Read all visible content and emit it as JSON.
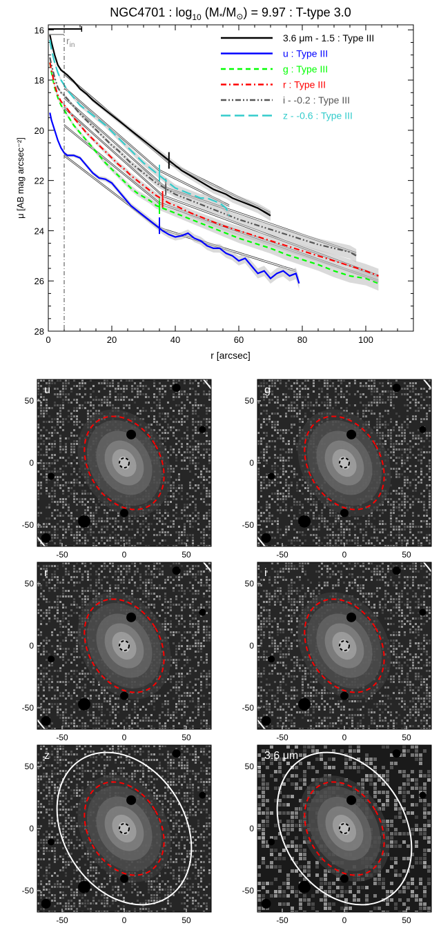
{
  "chart_data": [
    {
      "type": "line",
      "title": {
        "main": "NGC4701 : log",
        "sub1": "10",
        "mid": " (M",
        "sub2": "*",
        "mid2": "/M",
        "sub3": "⊙",
        "tail": ") = 9.97 : T-type 3.0"
      },
      "xlabel": "r [arcsec]",
      "ylabel": "μ [AB mag arcsec⁻²]",
      "xlim": [
        0,
        115
      ],
      "ylim": [
        28,
        15.8
      ],
      "y_inverted": true,
      "xticks": [
        0,
        20,
        40,
        60,
        80,
        100
      ],
      "yticks": [
        16,
        18,
        20,
        22,
        24,
        26,
        28
      ],
      "r_in_label": "r_in",
      "r_in_label_parts": {
        "base": "r",
        "sub": "in"
      },
      "r_in_value": 5,
      "legend_position": "top-right",
      "series": [
        {
          "name": "3.6 μm - 1.5 : Type III",
          "color": "#000000",
          "dash": "solid",
          "x": [
            0.5,
            1,
            2,
            3,
            4,
            5,
            6,
            8,
            10,
            12,
            14,
            16,
            18,
            20,
            22,
            24,
            26,
            28,
            30,
            32,
            34,
            36,
            38,
            40,
            42,
            44,
            46,
            48,
            50,
            52,
            54,
            56,
            58,
            60,
            62,
            64,
            66,
            68,
            70
          ],
          "y": [
            16.2,
            16.5,
            17.0,
            17.4,
            17.6,
            17.7,
            17.8,
            18.05,
            18.35,
            18.55,
            18.8,
            19.0,
            19.2,
            19.4,
            19.6,
            19.8,
            20.0,
            20.2,
            20.4,
            20.6,
            20.8,
            21.0,
            21.2,
            21.4,
            21.6,
            21.75,
            21.9,
            22.05,
            22.2,
            22.35,
            22.45,
            22.55,
            22.7,
            22.8,
            22.9,
            23.0,
            23.1,
            23.25,
            23.4
          ],
          "fit_segments": [
            [
              [
                5,
                17.75
              ],
              [
                38,
                21.3
              ]
            ],
            [
              [
                38,
                21.3
              ],
              [
                70,
                23.3
              ]
            ]
          ],
          "break_r": 38
        },
        {
          "name": "u : Type III",
          "color": "#0000ff",
          "dash": "solid",
          "x": [
            0.5,
            1,
            2,
            3,
            4,
            5,
            6,
            8,
            10,
            12,
            14,
            16,
            18,
            20,
            22,
            24,
            26,
            28,
            30,
            32,
            34,
            36,
            38,
            40,
            42,
            44,
            46,
            48,
            50,
            52,
            54,
            56,
            58,
            60,
            62,
            64,
            66,
            68,
            70,
            72,
            74,
            76,
            78,
            79
          ],
          "y": [
            19.3,
            19.6,
            20.0,
            20.4,
            20.7,
            20.9,
            21.0,
            21.0,
            21.1,
            21.4,
            21.7,
            21.9,
            21.95,
            22.1,
            22.4,
            22.7,
            23.0,
            23.2,
            23.4,
            23.6,
            23.8,
            24.0,
            24.15,
            24.25,
            24.2,
            24.1,
            24.3,
            24.4,
            24.6,
            24.7,
            24.7,
            24.9,
            25.0,
            25.2,
            25.1,
            25.4,
            25.7,
            25.6,
            25.9,
            25.7,
            25.6,
            25.8,
            25.7,
            26.1
          ],
          "fit_segments": [
            [
              [
                5,
                21.0
              ],
              [
                35,
                23.9
              ]
            ],
            [
              [
                35,
                23.9
              ],
              [
                78,
                25.6
              ]
            ]
          ],
          "break_r": 35
        },
        {
          "name": "g : Type III",
          "color": "#00ff00",
          "dash": "dashed",
          "x": [
            0.5,
            1,
            2,
            3,
            4,
            5,
            6,
            8,
            10,
            12,
            14,
            16,
            18,
            20,
            22,
            24,
            26,
            28,
            30,
            32,
            34,
            36,
            38,
            40,
            45,
            50,
            55,
            60,
            65,
            70,
            75,
            80,
            85,
            90,
            95,
            100,
            104
          ],
          "y": [
            17.3,
            17.7,
            18.3,
            18.7,
            19.0,
            19.2,
            19.4,
            19.8,
            20.1,
            20.4,
            20.7,
            21.0,
            21.3,
            21.55,
            21.8,
            22.05,
            22.3,
            22.5,
            22.65,
            22.8,
            23.0,
            23.1,
            23.2,
            23.3,
            23.55,
            23.8,
            24.05,
            24.3,
            24.5,
            24.7,
            24.95,
            25.15,
            25.35,
            25.6,
            25.8,
            25.9,
            26.1
          ],
          "fit_segments": [
            [
              [
                5,
                19.8
              ],
              [
                35,
                22.9
              ]
            ],
            [
              [
                35,
                22.9
              ],
              [
                104,
                26.0
              ]
            ]
          ],
          "break_r": 35
        },
        {
          "name": "r : Type III",
          "color": "#ff0000",
          "dash": "dashdot",
          "x": [
            0.5,
            1,
            2,
            3,
            4,
            5,
            6,
            8,
            10,
            12,
            14,
            16,
            18,
            20,
            22,
            24,
            26,
            28,
            30,
            32,
            34,
            36,
            38,
            40,
            45,
            50,
            55,
            60,
            65,
            70,
            75,
            80,
            85,
            90,
            95,
            100,
            104
          ],
          "y": [
            17.3,
            17.6,
            18.2,
            18.6,
            18.85,
            19.0,
            19.15,
            19.5,
            19.8,
            20.1,
            20.35,
            20.6,
            20.85,
            21.1,
            21.35,
            21.55,
            21.8,
            22.0,
            22.2,
            22.4,
            22.6,
            22.75,
            22.9,
            23.0,
            23.3,
            23.55,
            23.8,
            24.0,
            24.2,
            24.4,
            24.6,
            24.8,
            25.0,
            25.2,
            25.4,
            25.6,
            25.8
          ],
          "fit_segments": [
            [
              [
                5,
                19.1
              ],
              [
                36,
                22.6
              ]
            ],
            [
              [
                36,
                22.6
              ],
              [
                104,
                25.8
              ]
            ]
          ],
          "break_r": 36
        },
        {
          "name": "i - -0.2 : Type III",
          "color": "#555555",
          "dash": "dashdotdot",
          "x": [
            0.5,
            1,
            2,
            3,
            4,
            5,
            6,
            8,
            10,
            12,
            14,
            16,
            18,
            20,
            22,
            24,
            26,
            28,
            30,
            32,
            34,
            36,
            38,
            40,
            45,
            50,
            55,
            60,
            65,
            70,
            75,
            80,
            85,
            90,
            95,
            97
          ],
          "y": [
            17.1,
            17.4,
            17.9,
            18.3,
            18.5,
            18.6,
            18.75,
            19.05,
            19.35,
            19.6,
            19.85,
            20.1,
            20.35,
            20.6,
            20.8,
            21.05,
            21.3,
            21.5,
            21.7,
            21.9,
            22.1,
            22.25,
            22.4,
            22.55,
            22.8,
            23.05,
            23.3,
            23.55,
            23.75,
            23.95,
            24.15,
            24.35,
            24.55,
            24.7,
            24.85,
            25.0
          ],
          "fit_segments": [
            [
              [
                5,
                18.7
              ],
              [
                37,
                22.3
              ]
            ],
            [
              [
                37,
                22.3
              ],
              [
                97,
                24.9
              ]
            ]
          ],
          "break_r": 37
        },
        {
          "name": "z - -0.6 : Type III",
          "color": "#33cccc",
          "dash": "longdash",
          "x": [
            0.5,
            1,
            2,
            3,
            4,
            5,
            6,
            8,
            10,
            12,
            14,
            16,
            18,
            20,
            22,
            24,
            26,
            28,
            30,
            32,
            34,
            36,
            38,
            40,
            42,
            44,
            46,
            48,
            50,
            52,
            54,
            56,
            57
          ],
          "y": [
            16.4,
            16.8,
            17.3,
            17.7,
            18.0,
            18.2,
            18.4,
            18.7,
            19.0,
            19.2,
            19.4,
            19.6,
            19.8,
            20.05,
            20.3,
            20.55,
            20.8,
            21.05,
            21.3,
            21.5,
            21.7,
            21.9,
            22.1,
            22.3,
            22.4,
            22.5,
            22.6,
            22.7,
            22.7,
            22.8,
            22.9,
            23.1,
            23.4
          ],
          "fit_segments": [
            [
              [
                5,
                18.3
              ],
              [
                35,
                21.6
              ]
            ],
            [
              [
                35,
                21.6
              ],
              [
                57,
                23.0
              ]
            ]
          ],
          "break_r": 35
        }
      ]
    },
    {
      "type": "image-grid",
      "xticks": [
        -50,
        0,
        50
      ],
      "yticks": [
        50,
        0,
        -50
      ],
      "panels": [
        {
          "label": "u",
          "outer_ellipse_color": "#ffffff",
          "inner_ellipse_color": "#ff0000"
        },
        {
          "label": "g",
          "outer_ellipse_color": "#ffffff",
          "inner_ellipse_color": "#ff0000"
        },
        {
          "label": "r",
          "outer_ellipse_color": "#ffffff",
          "inner_ellipse_color": "#ff0000"
        },
        {
          "label": "i",
          "outer_ellipse_color": "#ffffff",
          "inner_ellipse_color": "#ff0000"
        },
        {
          "label": "z",
          "outer_ellipse_color": "#ffffff",
          "inner_ellipse_color": "#ff0000"
        },
        {
          "label": "3.6 μm",
          "outer_ellipse_color": "#ffffff",
          "inner_ellipse_color": "#ff0000"
        }
      ]
    }
  ]
}
